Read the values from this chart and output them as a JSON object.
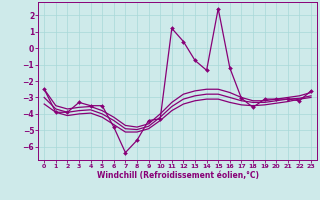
{
  "xlabel": "Windchill (Refroidissement éolien,°C)",
  "xlim": [
    -0.5,
    23.5
  ],
  "ylim": [
    -6.8,
    2.8
  ],
  "yticks": [
    2,
    1,
    0,
    -1,
    -2,
    -3,
    -4,
    -5,
    -6
  ],
  "xticks": [
    0,
    1,
    2,
    3,
    4,
    5,
    6,
    7,
    8,
    9,
    10,
    11,
    12,
    13,
    14,
    15,
    16,
    17,
    18,
    19,
    20,
    21,
    22,
    23
  ],
  "bg_color": "#ceeaea",
  "grid_color": "#a8d8d8",
  "line_color": "#880077",
  "main_x": [
    0,
    1,
    2,
    3,
    4,
    5,
    6,
    7,
    8,
    9,
    10,
    11,
    12,
    13,
    14,
    15,
    16,
    17,
    18,
    19,
    20,
    21,
    22,
    23
  ],
  "main_y": [
    -2.5,
    -3.9,
    -3.9,
    -3.3,
    -3.5,
    -3.5,
    -4.8,
    -6.35,
    -5.6,
    -4.4,
    -4.3,
    1.2,
    0.4,
    -0.75,
    -1.35,
    2.4,
    -1.2,
    -3.05,
    -3.6,
    -3.1,
    -3.1,
    -3.1,
    -3.2,
    -2.6
  ],
  "smooth1_x": [
    0,
    1,
    2,
    3,
    4,
    5,
    6,
    7,
    8,
    9,
    10,
    11,
    12,
    13,
    14,
    15,
    16,
    17,
    18,
    19,
    20,
    21,
    22,
    23
  ],
  "smooth1_y": [
    -2.5,
    -3.5,
    -3.7,
    -3.6,
    -3.55,
    -3.8,
    -4.2,
    -4.7,
    -4.8,
    -4.6,
    -4.0,
    -3.3,
    -2.8,
    -2.6,
    -2.5,
    -2.5,
    -2.7,
    -3.0,
    -3.2,
    -3.2,
    -3.1,
    -3.0,
    -2.9,
    -2.7
  ],
  "smooth2_x": [
    0,
    1,
    2,
    3,
    4,
    5,
    6,
    7,
    8,
    9,
    10,
    11,
    12,
    13,
    14,
    15,
    16,
    17,
    18,
    19,
    20,
    21,
    22,
    23
  ],
  "smooth2_y": [
    -3.0,
    -3.7,
    -3.9,
    -3.8,
    -3.75,
    -4.0,
    -4.4,
    -4.9,
    -4.95,
    -4.75,
    -4.2,
    -3.55,
    -3.1,
    -2.9,
    -2.8,
    -2.8,
    -3.0,
    -3.2,
    -3.3,
    -3.3,
    -3.2,
    -3.1,
    -3.05,
    -2.9
  ],
  "smooth3_x": [
    0,
    1,
    2,
    3,
    4,
    5,
    6,
    7,
    8,
    9,
    10,
    11,
    12,
    13,
    14,
    15,
    16,
    17,
    18,
    19,
    20,
    21,
    22,
    23
  ],
  "smooth3_y": [
    -3.4,
    -3.9,
    -4.1,
    -4.0,
    -3.95,
    -4.2,
    -4.65,
    -5.1,
    -5.1,
    -4.9,
    -4.4,
    -3.8,
    -3.4,
    -3.2,
    -3.1,
    -3.1,
    -3.3,
    -3.45,
    -3.5,
    -3.45,
    -3.35,
    -3.25,
    -3.1,
    -3.0
  ]
}
